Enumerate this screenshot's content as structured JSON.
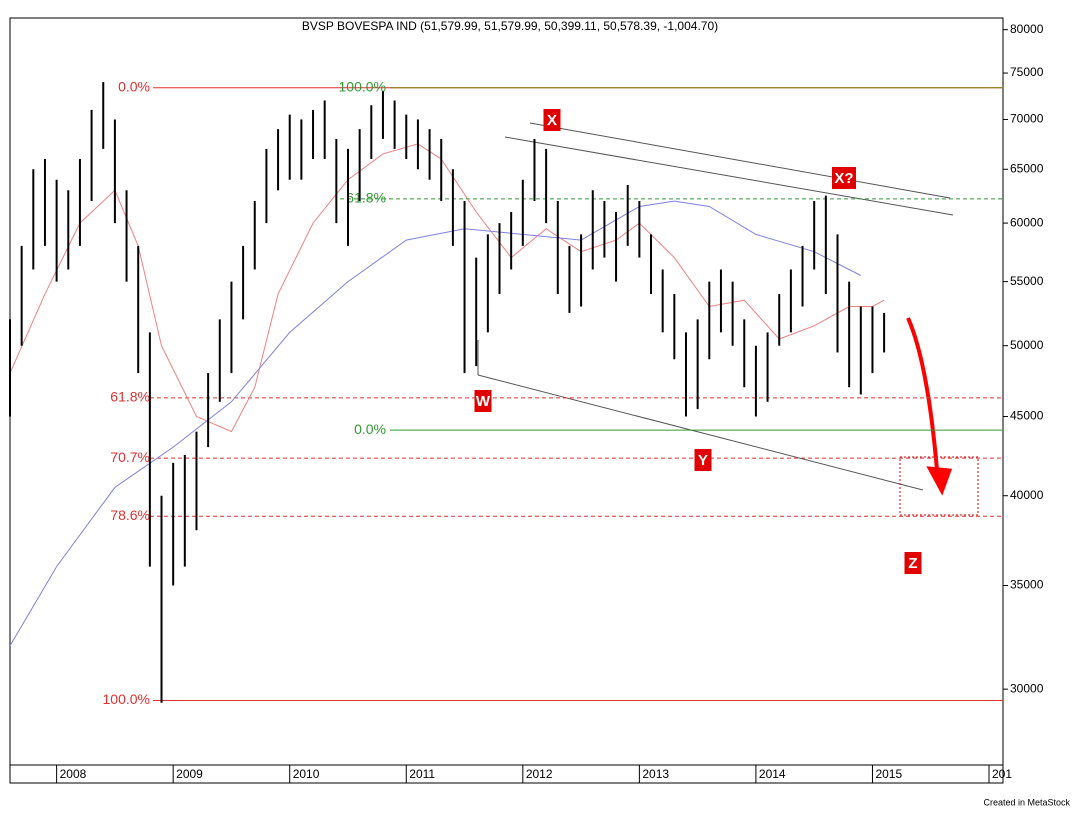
{
  "chart_data": {
    "type": "ohlc",
    "title": "BVSP BOVESPA IND (51,579.99, 51,579.99, 50,399.11, 50,578.39, -1,004.70)",
    "footer": "Created in MetaStock",
    "log_scale": true,
    "x": [
      2007.6,
      2007.7,
      2007.8,
      2007.9,
      2008.0,
      2008.1,
      2008.2,
      2008.3,
      2008.4,
      2008.5,
      2008.6,
      2008.7,
      2008.8,
      2008.9,
      2009.0,
      2009.1,
      2009.2,
      2009.3,
      2009.4,
      2009.5,
      2009.6,
      2009.7,
      2009.8,
      2009.9,
      2010.0,
      2010.1,
      2010.2,
      2010.3,
      2010.4,
      2010.5,
      2010.6,
      2010.7,
      2010.8,
      2010.9,
      2011.0,
      2011.1,
      2011.2,
      2011.3,
      2011.4,
      2011.5,
      2011.6,
      2011.7,
      2011.8,
      2011.9,
      2012.0,
      2012.1,
      2012.2,
      2012.3,
      2012.4,
      2012.5,
      2012.6,
      2012.7,
      2012.8,
      2012.9,
      2013.0,
      2013.1,
      2013.2,
      2013.3,
      2013.4,
      2013.5,
      2013.6,
      2013.7,
      2013.8,
      2013.9,
      2014.0,
      2014.1,
      2014.2,
      2014.3,
      2014.4,
      2014.5,
      2014.6,
      2014.7,
      2014.8,
      2014.9,
      2015.0,
      2015.1
    ],
    "series": [
      {
        "name": "High",
        "color": "#000000",
        "values": [
          52000,
          58000,
          65000,
          66000,
          64000,
          63000,
          66000,
          71000,
          74000,
          70000,
          63000,
          58000,
          51000,
          40000,
          42000,
          42500,
          44000,
          48000,
          52000,
          55000,
          58000,
          62000,
          67000,
          69000,
          70500,
          70000,
          71000,
          72000,
          68000,
          67000,
          69000,
          71500,
          73000,
          72000,
          70500,
          70000,
          69000,
          68000,
          65000,
          62000,
          57000,
          59000,
          60000,
          61000,
          64000,
          68000,
          67000,
          62000,
          58000,
          59000,
          63000,
          62000,
          61000,
          63500,
          62000,
          59000,
          56000,
          54000,
          51000,
          52000,
          55000,
          56000,
          55000,
          52000,
          50000,
          51000,
          54000,
          56000,
          58000,
          62000,
          62500,
          59000,
          55000,
          53000,
          53000,
          52500
        ]
      },
      {
        "name": "Low",
        "color": "#000000",
        "values": [
          45000,
          50000,
          56000,
          58000,
          55000,
          56000,
          58000,
          62000,
          67000,
          60000,
          55000,
          48000,
          36000,
          29400,
          35000,
          36000,
          38000,
          43000,
          46000,
          48000,
          52000,
          56000,
          60000,
          63000,
          64000,
          64000,
          66000,
          66000,
          60000,
          58000,
          62000,
          66000,
          68000,
          67000,
          66000,
          65000,
          64000,
          62000,
          58000,
          48000,
          48500,
          51000,
          54000,
          56000,
          58000,
          62000,
          60000,
          54000,
          52500,
          53000,
          56000,
          57000,
          55000,
          58000,
          57000,
          54000,
          51000,
          49000,
          45000,
          45500,
          49000,
          51000,
          50000,
          47000,
          45000,
          46000,
          50000,
          51000,
          53000,
          56000,
          54000,
          49500,
          47000,
          46500,
          48000,
          49500
        ]
      }
    ],
    "moving_averages": [
      {
        "color": "#f08080",
        "x": [
          2007.6,
          2007.9,
          2008.2,
          2008.5,
          2008.7,
          2008.9,
          2009.2,
          2009.5,
          2009.7,
          2009.9,
          2010.2,
          2010.5,
          2010.8,
          2011.1,
          2011.3,
          2011.6,
          2011.9,
          2012.2,
          2012.5,
          2012.8,
          2013.0,
          2013.3,
          2013.6,
          2013.9,
          2014.2,
          2014.5,
          2014.8,
          2015.0,
          2015.1
        ],
        "values": [
          48000,
          54000,
          60000,
          63000,
          58000,
          50000,
          45000,
          44000,
          47000,
          54000,
          60000,
          64000,
          66500,
          67500,
          66000,
          61000,
          57000,
          59500,
          57500,
          58500,
          60000,
          57000,
          53000,
          53500,
          50500,
          51500,
          53000,
          53000,
          53500
        ]
      },
      {
        "color": "#8080e0",
        "x": [
          2007.6,
          2008.0,
          2008.5,
          2009.0,
          2009.5,
          2010.0,
          2010.5,
          2011.0,
          2011.5,
          2012.0,
          2012.5,
          2013.0,
          2013.3,
          2013.6,
          2014.0,
          2014.5,
          2014.9
        ],
        "values": [
          32000,
          36000,
          40500,
          43000,
          46000,
          51000,
          55000,
          58500,
          59500,
          59000,
          58500,
          61500,
          62000,
          61500,
          59000,
          57500,
          55500
        ]
      }
    ],
    "fib_left": {
      "color": "#e03030",
      "levels": [
        {
          "label": "0.0%",
          "value": 73380
        },
        {
          "label": "61.8%",
          "value": 46270,
          "dashed": true
        },
        {
          "label": "70.7%",
          "value": 42300,
          "dashed": true
        },
        {
          "label": "78.6%",
          "value": 38800,
          "dashed": true
        },
        {
          "label": "100.0%",
          "value": 29500
        }
      ]
    },
    "fib_right": {
      "color": "#339933",
      "levels": [
        {
          "label": "100.0%",
          "value": 73380,
          "color": "#808000"
        },
        {
          "label": "61.8%",
          "value": 62200,
          "dashed": true
        },
        {
          "label": "0.0%",
          "value": 44100
        }
      ]
    },
    "waves": [
      "W",
      "X",
      "Y",
      "X?",
      "Z"
    ],
    "xlim": [
      2007.6,
      2016.12
    ],
    "xticks": [
      2008,
      2009,
      2010,
      2011,
      2012,
      2013,
      2014,
      2015,
      {
        "value": 2016,
        "label": "201"
      }
    ],
    "ylim": [
      26800,
      81400
    ],
    "yticks": [
      80000,
      75000,
      70000,
      65000,
      60000,
      55000,
      50000,
      45000,
      40000,
      35000,
      30000
    ]
  }
}
